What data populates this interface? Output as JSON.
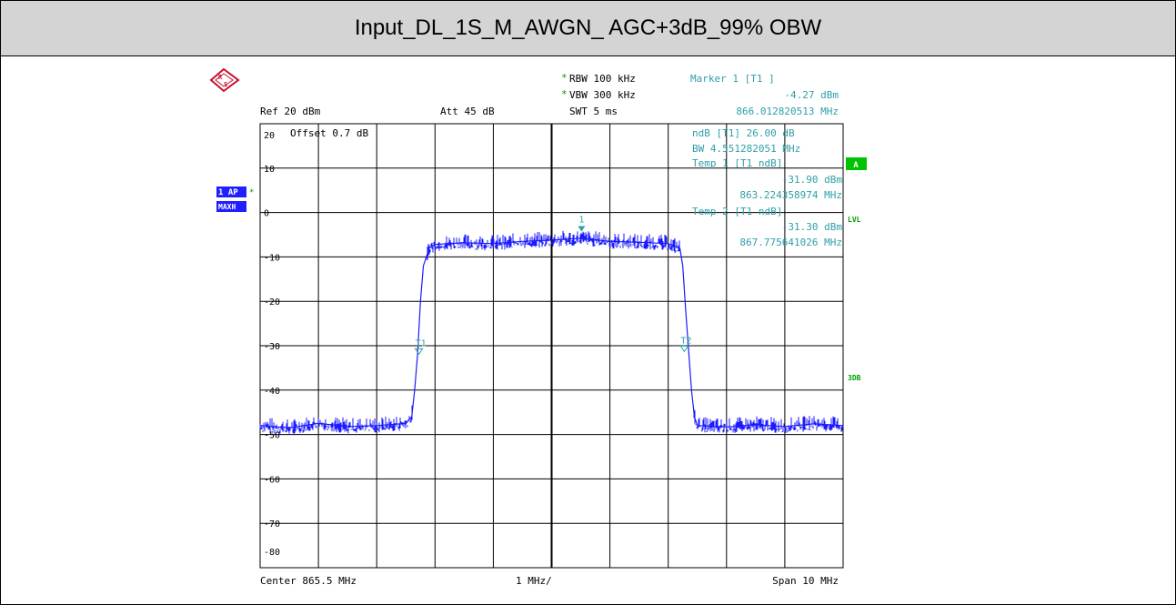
{
  "title": "Input_DL_1S_M_AWGN_ AGC+3dB_99% OBW",
  "colors": {
    "trace": "#1a1aff",
    "marker_text": "#2ea0a8",
    "badge_green": "#00c400",
    "side_green": "#00a000",
    "badge_blue": "#2020ff"
  },
  "settings": {
    "rbw": "RBW 100 kHz",
    "vbw": "VBW 300 kHz",
    "swt": "SWT 5 ms",
    "ref": "Ref  20 dBm",
    "att": "Att  45 dB",
    "offset": "Offset   0.7 dB",
    "center": "Center  865.5 MHz",
    "div": "1 MHz/",
    "span": "Span  10 MHz"
  },
  "markers": {
    "m1_title": "Marker 1 [T1 ]",
    "m1_level": "-4.27 dBm",
    "m1_freq": "866.012820513 MHz",
    "ndb_label": "ndB  [T1]    26.00 dB",
    "bw_label": "BW   4.551282051 MHz",
    "temp1_title": "Temp 1 [T1 ndB]",
    "temp1_level": "-31.90 dBm",
    "temp1_freq": "863.224358974 MHz",
    "temp2_title": "Temp 2 [T1 ndB]",
    "temp2_level": "-31.30 dBm",
    "temp2_freq": "867.775641026 MHz"
  },
  "badges": {
    "left_top": "1 AP",
    "left_bottom": "MAXH",
    "right_a": "A",
    "lvl": "LVL",
    "threedb": "3DB"
  },
  "marker_labels": {
    "m1": "1",
    "t1": "T1",
    "t2": "T2"
  },
  "chart_data": {
    "type": "line",
    "xlabel": "",
    "ylabel": "",
    "xlim": [
      860.5,
      870.5
    ],
    "ylim": [
      -90,
      10
    ],
    "ytick_labels": [
      "20",
      "10",
      "0",
      "-10",
      "-20",
      "-30",
      "-40",
      "-50",
      "-60",
      "-70",
      "-80"
    ],
    "grid": true,
    "series": [
      {
        "x": [
          860.5,
          861.0,
          861.5,
          862.0,
          862.5,
          863.0,
          863.1,
          863.15,
          863.2,
          863.25,
          863.3,
          863.4,
          863.5,
          864.0,
          864.5,
          865.0,
          865.5,
          866.0,
          866.5,
          867.0,
          867.5,
          867.7,
          867.75,
          867.8,
          867.85,
          867.9,
          867.95,
          868.0,
          868.5,
          869.0,
          869.5,
          870.0,
          870.5
        ],
        "y": [
          -48,
          -48.5,
          -47.5,
          -48.2,
          -48,
          -47.5,
          -46,
          -40,
          -32,
          -20,
          -12,
          -8,
          -7.2,
          -6.8,
          -7,
          -6.5,
          -6.2,
          -5.8,
          -6.5,
          -6.7,
          -7,
          -8,
          -12,
          -22,
          -31,
          -40,
          -46,
          -48,
          -48.3,
          -47.8,
          -48.2,
          -47.6,
          -48
        ]
      }
    ],
    "markers": [
      {
        "name": "1",
        "x": 866.01282,
        "y": -4.27
      },
      {
        "name": "T1",
        "x": 863.224358974,
        "y": -31.9
      },
      {
        "name": "T2",
        "x": 867.775641026,
        "y": -31.3
      }
    ]
  }
}
